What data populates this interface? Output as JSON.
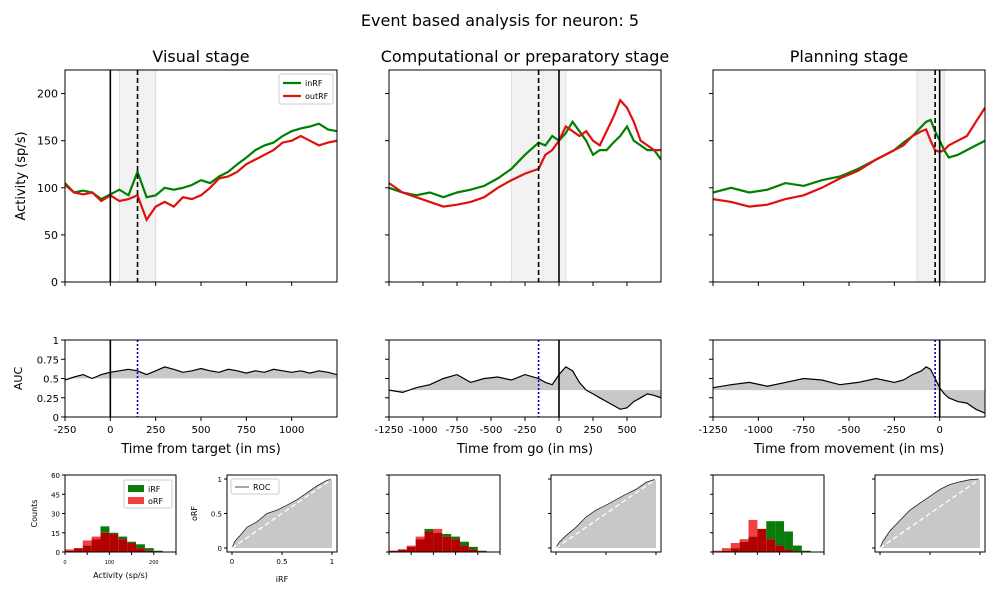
{
  "figure": {
    "suptitle": "Event based analysis for neuron: 5"
  },
  "colors": {
    "inRF": "#008000",
    "outRF": "#e0100f",
    "hist_inRF": "#0a7a0a",
    "hist_outRF": "#f04040",
    "overlap": "#b30000",
    "window_fill": "#f2f2f2",
    "auc_fill": "#c8c8c8",
    "roc_fill": "#c8c8c8",
    "marker_blue": "#0000cc"
  },
  "chart_data": [
    {
      "type": "line",
      "panel": "visual-activity",
      "title": "Visual stage",
      "ylabel": "Activity (sp/s)",
      "xlim": [
        -250,
        1250
      ],
      "ylim": [
        0,
        225
      ],
      "yticks": [
        0,
        50,
        100,
        150,
        200
      ],
      "xticks": [
        -250,
        0,
        250,
        500,
        750,
        1000
      ],
      "event_line": 0,
      "dashed_line": 150,
      "window": [
        50,
        250
      ],
      "legend": "top-right",
      "series": [
        {
          "name": "inRF",
          "x": [
            -250,
            -200,
            -150,
            -100,
            -50,
            0,
            50,
            100,
            150,
            200,
            250,
            300,
            350,
            400,
            450,
            500,
            550,
            600,
            650,
            700,
            750,
            800,
            850,
            900,
            950,
            1000,
            1050,
            1100,
            1150,
            1200,
            1250
          ],
          "values": [
            105,
            95,
            97,
            95,
            88,
            93,
            98,
            92,
            117,
            90,
            92,
            100,
            98,
            100,
            103,
            108,
            105,
            112,
            117,
            125,
            132,
            140,
            145,
            148,
            155,
            160,
            163,
            165,
            168,
            162,
            160
          ]
        },
        {
          "name": "outRF",
          "x": [
            -250,
            -200,
            -150,
            -100,
            -50,
            0,
            50,
            100,
            150,
            200,
            250,
            300,
            350,
            400,
            450,
            500,
            550,
            600,
            650,
            700,
            750,
            800,
            850,
            900,
            950,
            1000,
            1050,
            1100,
            1150,
            1200,
            1250
          ],
          "values": [
            103,
            95,
            93,
            95,
            86,
            92,
            86,
            88,
            92,
            66,
            80,
            85,
            80,
            90,
            88,
            92,
            100,
            110,
            112,
            117,
            125,
            130,
            135,
            140,
            148,
            150,
            155,
            150,
            145,
            148,
            150
          ]
        }
      ]
    },
    {
      "type": "line",
      "panel": "comp-activity",
      "title": "Computational or preparatory stage",
      "xlim": [
        -1250,
        750
      ],
      "ylim": [
        0,
        225
      ],
      "xticks": [
        -1250,
        -1000,
        -750,
        -500,
        -250,
        0,
        250,
        500
      ],
      "event_line": 0,
      "dashed_line": -150,
      "window": [
        -350,
        50
      ],
      "series": [
        {
          "name": "inRF",
          "x": [
            -1250,
            -1150,
            -1050,
            -950,
            -850,
            -750,
            -650,
            -550,
            -450,
            -350,
            -250,
            -150,
            -100,
            -50,
            0,
            50,
            100,
            150,
            200,
            250,
            300,
            350,
            400,
            450,
            500,
            550,
            600,
            650,
            700,
            750
          ],
          "values": [
            100,
            95,
            92,
            95,
            90,
            95,
            98,
            102,
            110,
            120,
            135,
            148,
            145,
            155,
            150,
            158,
            170,
            160,
            150,
            135,
            140,
            140,
            148,
            155,
            165,
            150,
            145,
            140,
            140,
            130
          ]
        },
        {
          "name": "outRF",
          "x": [
            -1250,
            -1150,
            -1050,
            -950,
            -850,
            -750,
            -650,
            -550,
            -450,
            -350,
            -250,
            -150,
            -100,
            -50,
            0,
            50,
            100,
            150,
            200,
            250,
            300,
            350,
            400,
            450,
            500,
            550,
            600,
            650,
            700,
            750
          ],
          "values": [
            105,
            95,
            90,
            85,
            80,
            82,
            85,
            90,
            100,
            108,
            115,
            120,
            135,
            140,
            150,
            165,
            160,
            155,
            160,
            150,
            145,
            160,
            175,
            193,
            185,
            170,
            150,
            145,
            140,
            140
          ]
        }
      ]
    },
    {
      "type": "line",
      "panel": "plan-activity",
      "title": "Planning stage",
      "xlim": [
        -1250,
        250
      ],
      "ylim": [
        0,
        225
      ],
      "xticks": [
        -1250,
        -1000,
        -750,
        -500,
        -250,
        0
      ],
      "event_line": 0,
      "dashed_line": -25,
      "window": [
        -125,
        25
      ],
      "series": [
        {
          "name": "inRF",
          "x": [
            -1250,
            -1150,
            -1050,
            -950,
            -850,
            -750,
            -650,
            -550,
            -450,
            -350,
            -250,
            -200,
            -150,
            -100,
            -75,
            -50,
            -25,
            0,
            25,
            50,
            100,
            150,
            200,
            250
          ],
          "values": [
            95,
            100,
            95,
            98,
            105,
            102,
            108,
            112,
            120,
            130,
            140,
            148,
            155,
            165,
            170,
            172,
            160,
            150,
            140,
            132,
            135,
            140,
            145,
            150
          ]
        },
        {
          "name": "outRF",
          "x": [
            -1250,
            -1150,
            -1050,
            -950,
            -850,
            -750,
            -650,
            -550,
            -450,
            -350,
            -250,
            -200,
            -150,
            -100,
            -75,
            -50,
            -25,
            0,
            25,
            50,
            100,
            150,
            200,
            250
          ],
          "values": [
            88,
            85,
            80,
            82,
            88,
            92,
            100,
            110,
            118,
            130,
            140,
            145,
            155,
            160,
            162,
            150,
            140,
            138,
            140,
            145,
            150,
            155,
            170,
            185
          ]
        }
      ]
    },
    {
      "type": "area",
      "panel": "visual-auc",
      "ylabel": "AUC",
      "xlabel": "Time from target (in ms)",
      "xlim": [
        -250,
        1250
      ],
      "ylim": [
        0,
        1
      ],
      "yticks": [
        0,
        0.25,
        0.5,
        0.75,
        1
      ],
      "ytick_labels": [
        "0",
        "0.25",
        "0.5",
        "0.75",
        "1"
      ],
      "xticks": [
        -250,
        0,
        250,
        500,
        750,
        1000
      ],
      "xtick_labels": [
        "-250",
        "0",
        "250",
        "500",
        "750",
        "1000"
      ],
      "event_line": 0,
      "dotted_line": 150,
      "baseline": 0.5,
      "x": [
        -250,
        -200,
        -150,
        -100,
        -50,
        0,
        50,
        100,
        150,
        200,
        250,
        300,
        350,
        400,
        450,
        500,
        550,
        600,
        650,
        700,
        750,
        800,
        850,
        900,
        950,
        1000,
        1050,
        1100,
        1150,
        1200,
        1250
      ],
      "values": [
        0.48,
        0.52,
        0.55,
        0.5,
        0.55,
        0.58,
        0.6,
        0.62,
        0.6,
        0.55,
        0.6,
        0.65,
        0.62,
        0.58,
        0.6,
        0.63,
        0.6,
        0.58,
        0.62,
        0.6,
        0.57,
        0.6,
        0.58,
        0.62,
        0.6,
        0.58,
        0.6,
        0.57,
        0.6,
        0.58,
        0.55
      ]
    },
    {
      "type": "area",
      "panel": "comp-auc",
      "xlabel": "Time from go (in ms)",
      "xlim": [
        -1250,
        750
      ],
      "ylim": [
        0,
        1
      ],
      "xticks": [
        -1250,
        -1000,
        -750,
        -500,
        -250,
        0,
        250,
        500
      ],
      "xtick_labels": [
        "-1250",
        "-1000",
        "-750",
        "-500",
        "-250",
        "0",
        "250",
        "500"
      ],
      "event_line": 0,
      "dotted_line": -150,
      "baseline": 0.35,
      "x": [
        -1250,
        -1150,
        -1050,
        -950,
        -850,
        -750,
        -650,
        -550,
        -450,
        -350,
        -250,
        -150,
        -100,
        -50,
        0,
        50,
        100,
        150,
        200,
        250,
        300,
        350,
        400,
        450,
        500,
        550,
        600,
        650,
        700,
        750
      ],
      "values": [
        0.35,
        0.32,
        0.38,
        0.42,
        0.5,
        0.55,
        0.45,
        0.5,
        0.52,
        0.48,
        0.55,
        0.5,
        0.45,
        0.42,
        0.55,
        0.65,
        0.6,
        0.45,
        0.35,
        0.3,
        0.25,
        0.2,
        0.15,
        0.1,
        0.12,
        0.2,
        0.25,
        0.3,
        0.28,
        0.25
      ]
    },
    {
      "type": "area",
      "panel": "plan-auc",
      "xlabel": "Time from movement (in ms)",
      "xlim": [
        -1250,
        250
      ],
      "ylim": [
        0,
        1
      ],
      "xticks": [
        -1250,
        -1000,
        -750,
        -500,
        -250,
        0
      ],
      "xtick_labels": [
        "-1250",
        "-1000",
        "-750",
        "-500",
        "-250",
        "0"
      ],
      "event_line": 0,
      "dotted_line": -25,
      "baseline": 0.35,
      "x": [
        -1250,
        -1150,
        -1050,
        -950,
        -850,
        -750,
        -650,
        -550,
        -450,
        -350,
        -250,
        -200,
        -150,
        -100,
        -75,
        -50,
        -25,
        0,
        25,
        50,
        100,
        150,
        200,
        250
      ],
      "values": [
        0.38,
        0.42,
        0.45,
        0.4,
        0.45,
        0.5,
        0.48,
        0.42,
        0.45,
        0.5,
        0.45,
        0.48,
        0.55,
        0.6,
        0.65,
        0.62,
        0.5,
        0.38,
        0.3,
        0.25,
        0.2,
        0.18,
        0.1,
        0.05
      ]
    },
    {
      "type": "bar",
      "panel": "visual-hist",
      "ylabel": "Counts",
      "xlabel": "Activity (sp/s)",
      "ylim": [
        0,
        60
      ],
      "yticks": [
        0,
        15,
        30,
        45,
        60
      ],
      "xlim": [
        0,
        250
      ],
      "xticks": [
        0,
        100,
        200
      ],
      "legend": "top-right",
      "bin_edges": [
        0,
        20,
        40,
        60,
        80,
        100,
        120,
        140,
        160,
        180,
        200,
        220
      ],
      "series": [
        {
          "name": "iRF",
          "values": [
            1,
            3,
            5,
            10,
            20,
            15,
            12,
            8,
            6,
            3,
            1
          ]
        },
        {
          "name": "oRF",
          "values": [
            2,
            3,
            9,
            12,
            15,
            14,
            10,
            7,
            3,
            1,
            0
          ]
        }
      ]
    },
    {
      "type": "line",
      "panel": "visual-roc",
      "xlabel": "iRF",
      "ylabel": "oRF",
      "xlim": [
        0,
        1
      ],
      "ylim": [
        0,
        1
      ],
      "xticks": [
        0,
        0.5,
        1
      ],
      "yticks": [
        0,
        0.5,
        1
      ],
      "legend": "top-left",
      "series": [
        {
          "name": "ROC",
          "x": [
            0,
            0.03,
            0.08,
            0.15,
            0.25,
            0.35,
            0.45,
            0.55,
            0.65,
            0.75,
            0.85,
            0.95,
            1
          ],
          "values": [
            0,
            0.1,
            0.18,
            0.3,
            0.38,
            0.5,
            0.55,
            0.62,
            0.7,
            0.8,
            0.9,
            0.98,
            1
          ]
        }
      ]
    },
    {
      "type": "bar",
      "panel": "comp-hist",
      "ylim": [
        0,
        60
      ],
      "xlim": [
        0,
        250
      ],
      "bin_edges": [
        0,
        20,
        40,
        60,
        80,
        100,
        120,
        140,
        160,
        180,
        200,
        220
      ],
      "series": [
        {
          "name": "iRF",
          "values": [
            1,
            2,
            4,
            10,
            18,
            15,
            14,
            12,
            8,
            4,
            1
          ]
        },
        {
          "name": "oRF",
          "values": [
            1,
            2,
            5,
            12,
            16,
            18,
            12,
            10,
            5,
            2,
            0
          ]
        }
      ]
    },
    {
      "type": "line",
      "panel": "comp-roc",
      "xlim": [
        0,
        1
      ],
      "ylim": [
        0,
        1
      ],
      "series": [
        {
          "x": [
            0,
            0.03,
            0.1,
            0.2,
            0.3,
            0.4,
            0.5,
            0.6,
            0.7,
            0.8,
            0.9,
            1
          ],
          "values": [
            0,
            0.08,
            0.18,
            0.3,
            0.45,
            0.55,
            0.62,
            0.7,
            0.78,
            0.85,
            0.95,
            1
          ]
        }
      ]
    },
    {
      "type": "bar",
      "panel": "plan-hist",
      "ylim": [
        0,
        60
      ],
      "xlim": [
        0,
        250
      ],
      "bin_edges": [
        0,
        20,
        40,
        60,
        80,
        100,
        120,
        140,
        160,
        180,
        200,
        220
      ],
      "series": [
        {
          "name": "iRF",
          "values": [
            0,
            1,
            3,
            8,
            12,
            18,
            24,
            24,
            16,
            5,
            1
          ]
        },
        {
          "name": "oRF",
          "values": [
            1,
            3,
            7,
            10,
            25,
            18,
            10,
            5,
            2,
            0,
            0
          ]
        }
      ]
    },
    {
      "type": "line",
      "panel": "plan-roc",
      "xlim": [
        0,
        1
      ],
      "ylim": [
        0,
        1
      ],
      "series": [
        {
          "x": [
            0,
            0.03,
            0.1,
            0.2,
            0.3,
            0.4,
            0.5,
            0.6,
            0.7,
            0.8,
            0.9,
            1
          ],
          "values": [
            0,
            0.1,
            0.25,
            0.4,
            0.55,
            0.65,
            0.75,
            0.85,
            0.92,
            0.96,
            0.99,
            1
          ]
        }
      ]
    }
  ]
}
